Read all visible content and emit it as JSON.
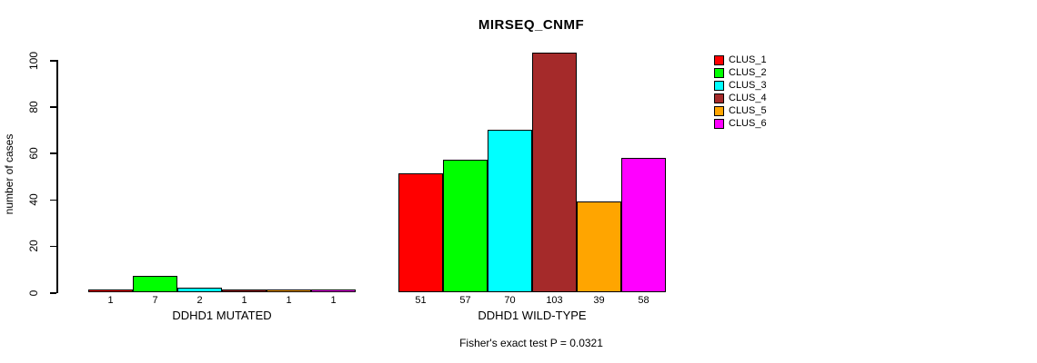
{
  "chart_data": {
    "type": "bar",
    "title": "MIRSEQ_CNMF",
    "ylabel": "number of cases",
    "subtitle": "Fisher's exact test P = 0.0321",
    "ylim": [
      0,
      100
    ],
    "yticks": [
      0,
      20,
      40,
      60,
      80,
      100
    ],
    "grid": false,
    "legend_position": "right",
    "categories": [
      "DDHD1 MUTATED",
      "DDHD1 WILD-TYPE"
    ],
    "series": [
      {
        "name": "CLUS_1",
        "color": "#ff0000",
        "values": [
          1,
          51
        ]
      },
      {
        "name": "CLUS_2",
        "color": "#00ff00",
        "values": [
          7,
          57
        ]
      },
      {
        "name": "CLUS_3",
        "color": "#00ffff",
        "values": [
          2,
          70
        ]
      },
      {
        "name": "CLUS_4",
        "color": "#a52a2a",
        "values": [
          1,
          103
        ]
      },
      {
        "name": "CLUS_5",
        "color": "#ffa500",
        "values": [
          1,
          39
        ]
      },
      {
        "name": "CLUS_6",
        "color": "#ff00ff",
        "values": [
          1,
          58
        ]
      }
    ],
    "bar_value_labels": [
      [
        1,
        7,
        2,
        1,
        1,
        1
      ],
      [
        51,
        57,
        70,
        103,
        39,
        58
      ]
    ],
    "value_labels_shown": true
  },
  "colors": {
    "axis": "#000000",
    "text": "#000000",
    "background": "#ffffff"
  }
}
